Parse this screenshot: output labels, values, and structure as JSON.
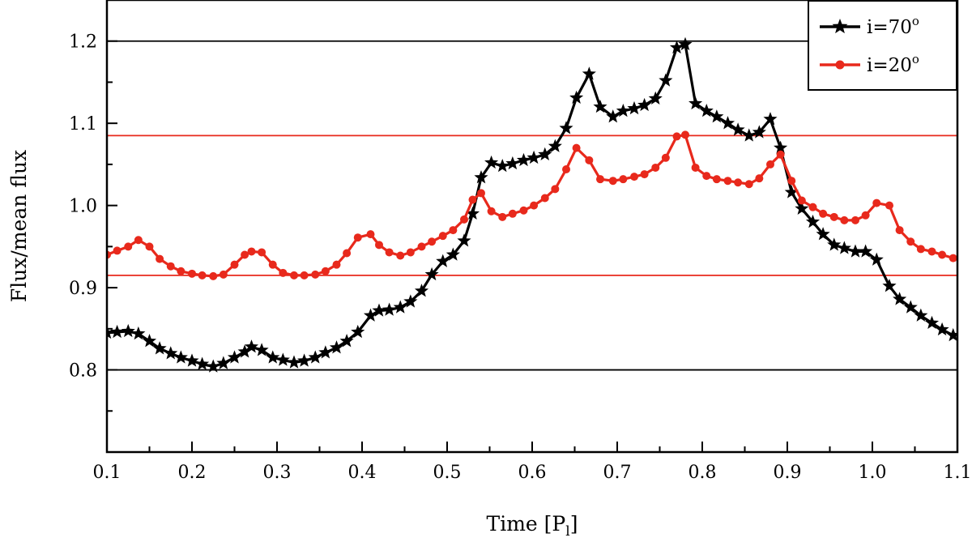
{
  "chart_data": {
    "type": "line",
    "xlabel": "Time [P",
    "xlabel_sub": "l",
    "xlabel_close": "]",
    "ylabel": "Flux/mean flux",
    "xlim": [
      0.1,
      1.1
    ],
    "ylim": [
      0.7,
      1.25
    ],
    "xticks": [
      0.1,
      0.2,
      0.3,
      0.4,
      0.5,
      0.6,
      0.7,
      0.8,
      0.9,
      1.0,
      1.1
    ],
    "xtick_labels": [
      "0.1",
      "0.2",
      "0.3",
      "0.4",
      "0.5",
      "0.6",
      "0.7",
      "0.8",
      "0.9",
      "1.0",
      "1.1"
    ],
    "yticks": [
      0.8,
      0.9,
      1.0,
      1.1,
      1.2
    ],
    "ytick_labels": [
      "0.8",
      "0.9",
      "1.0",
      "1.1",
      "1.2"
    ],
    "legend": {
      "position": "top-right"
    },
    "reference_lines": [
      {
        "y": 1.2,
        "color": "#000000"
      },
      {
        "y": 0.8,
        "color": "#000000"
      },
      {
        "y": 1.085,
        "color": "#e8291c"
      },
      {
        "y": 0.915,
        "color": "#e8291c"
      }
    ],
    "series": [
      {
        "name": "i=70",
        "name_sup": "o",
        "marker": "star",
        "color": "#000000",
        "points": [
          [
            0.1,
            0.845
          ],
          [
            0.112,
            0.846
          ],
          [
            0.125,
            0.847
          ],
          [
            0.137,
            0.844
          ],
          [
            0.15,
            0.835
          ],
          [
            0.162,
            0.826
          ],
          [
            0.175,
            0.82
          ],
          [
            0.187,
            0.815
          ],
          [
            0.2,
            0.811
          ],
          [
            0.212,
            0.807
          ],
          [
            0.225,
            0.804
          ],
          [
            0.237,
            0.808
          ],
          [
            0.25,
            0.815
          ],
          [
            0.262,
            0.822
          ],
          [
            0.27,
            0.828
          ],
          [
            0.282,
            0.824
          ],
          [
            0.295,
            0.815
          ],
          [
            0.307,
            0.812
          ],
          [
            0.32,
            0.809
          ],
          [
            0.332,
            0.811
          ],
          [
            0.345,
            0.815
          ],
          [
            0.357,
            0.821
          ],
          [
            0.37,
            0.827
          ],
          [
            0.382,
            0.835
          ],
          [
            0.395,
            0.846
          ],
          [
            0.41,
            0.866
          ],
          [
            0.42,
            0.872
          ],
          [
            0.432,
            0.873
          ],
          [
            0.445,
            0.876
          ],
          [
            0.457,
            0.883
          ],
          [
            0.47,
            0.896
          ],
          [
            0.482,
            0.916
          ],
          [
            0.495,
            0.932
          ],
          [
            0.507,
            0.94
          ],
          [
            0.52,
            0.957
          ],
          [
            0.53,
            0.99
          ],
          [
            0.54,
            1.034
          ],
          [
            0.552,
            1.052
          ],
          [
            0.565,
            1.048
          ],
          [
            0.577,
            1.051
          ],
          [
            0.59,
            1.055
          ],
          [
            0.602,
            1.058
          ],
          [
            0.615,
            1.062
          ],
          [
            0.627,
            1.072
          ],
          [
            0.64,
            1.094
          ],
          [
            0.652,
            1.131
          ],
          [
            0.667,
            1.16
          ],
          [
            0.68,
            1.12
          ],
          [
            0.695,
            1.108
          ],
          [
            0.707,
            1.115
          ],
          [
            0.72,
            1.118
          ],
          [
            0.732,
            1.122
          ],
          [
            0.745,
            1.13
          ],
          [
            0.757,
            1.152
          ],
          [
            0.77,
            1.192
          ],
          [
            0.78,
            1.196
          ],
          [
            0.792,
            1.124
          ],
          [
            0.805,
            1.115
          ],
          [
            0.817,
            1.108
          ],
          [
            0.83,
            1.1
          ],
          [
            0.842,
            1.092
          ],
          [
            0.855,
            1.085
          ],
          [
            0.867,
            1.089
          ],
          [
            0.88,
            1.105
          ],
          [
            0.892,
            1.07
          ],
          [
            0.905,
            1.016
          ],
          [
            0.917,
            0.996
          ],
          [
            0.93,
            0.98
          ],
          [
            0.942,
            0.965
          ],
          [
            0.955,
            0.952
          ],
          [
            0.967,
            0.948
          ],
          [
            0.98,
            0.944
          ],
          [
            0.992,
            0.944
          ],
          [
            1.005,
            0.934
          ],
          [
            1.02,
            0.902
          ],
          [
            1.032,
            0.886
          ],
          [
            1.045,
            0.876
          ],
          [
            1.057,
            0.866
          ],
          [
            1.07,
            0.857
          ],
          [
            1.082,
            0.849
          ],
          [
            1.095,
            0.842
          ]
        ]
      },
      {
        "name": "i=20",
        "name_sup": "o",
        "marker": "circle",
        "color": "#e8291c",
        "points": [
          [
            0.1,
            0.94
          ],
          [
            0.112,
            0.945
          ],
          [
            0.125,
            0.95
          ],
          [
            0.137,
            0.958
          ],
          [
            0.15,
            0.95
          ],
          [
            0.162,
            0.935
          ],
          [
            0.175,
            0.926
          ],
          [
            0.187,
            0.92
          ],
          [
            0.2,
            0.917
          ],
          [
            0.212,
            0.915
          ],
          [
            0.225,
            0.914
          ],
          [
            0.237,
            0.916
          ],
          [
            0.25,
            0.928
          ],
          [
            0.262,
            0.94
          ],
          [
            0.27,
            0.944
          ],
          [
            0.282,
            0.943
          ],
          [
            0.295,
            0.928
          ],
          [
            0.307,
            0.918
          ],
          [
            0.32,
            0.915
          ],
          [
            0.332,
            0.915
          ],
          [
            0.345,
            0.916
          ],
          [
            0.357,
            0.92
          ],
          [
            0.37,
            0.928
          ],
          [
            0.382,
            0.942
          ],
          [
            0.395,
            0.961
          ],
          [
            0.41,
            0.965
          ],
          [
            0.42,
            0.952
          ],
          [
            0.432,
            0.943
          ],
          [
            0.445,
            0.939
          ],
          [
            0.457,
            0.943
          ],
          [
            0.47,
            0.95
          ],
          [
            0.482,
            0.956
          ],
          [
            0.495,
            0.963
          ],
          [
            0.507,
            0.97
          ],
          [
            0.52,
            0.983
          ],
          [
            0.53,
            1.007
          ],
          [
            0.54,
            1.015
          ],
          [
            0.552,
            0.993
          ],
          [
            0.565,
            0.986
          ],
          [
            0.577,
            0.99
          ],
          [
            0.59,
            0.994
          ],
          [
            0.602,
            1.0
          ],
          [
            0.615,
            1.009
          ],
          [
            0.627,
            1.02
          ],
          [
            0.64,
            1.044
          ],
          [
            0.652,
            1.07
          ],
          [
            0.667,
            1.055
          ],
          [
            0.68,
            1.032
          ],
          [
            0.695,
            1.03
          ],
          [
            0.707,
            1.032
          ],
          [
            0.72,
            1.035
          ],
          [
            0.732,
            1.038
          ],
          [
            0.745,
            1.046
          ],
          [
            0.757,
            1.058
          ],
          [
            0.77,
            1.084
          ],
          [
            0.78,
            1.086
          ],
          [
            0.792,
            1.046
          ],
          [
            0.805,
            1.036
          ],
          [
            0.817,
            1.032
          ],
          [
            0.83,
            1.03
          ],
          [
            0.842,
            1.028
          ],
          [
            0.855,
            1.026
          ],
          [
            0.867,
            1.033
          ],
          [
            0.88,
            1.05
          ],
          [
            0.892,
            1.062
          ],
          [
            0.905,
            1.03
          ],
          [
            0.917,
            1.006
          ],
          [
            0.93,
            0.998
          ],
          [
            0.942,
            0.99
          ],
          [
            0.955,
            0.986
          ],
          [
            0.967,
            0.982
          ],
          [
            0.98,
            0.982
          ],
          [
            0.992,
            0.988
          ],
          [
            1.005,
            1.003
          ],
          [
            1.02,
            1.0
          ],
          [
            1.032,
            0.97
          ],
          [
            1.045,
            0.956
          ],
          [
            1.057,
            0.947
          ],
          [
            1.07,
            0.944
          ],
          [
            1.082,
            0.94
          ],
          [
            1.095,
            0.936
          ]
        ]
      }
    ]
  }
}
